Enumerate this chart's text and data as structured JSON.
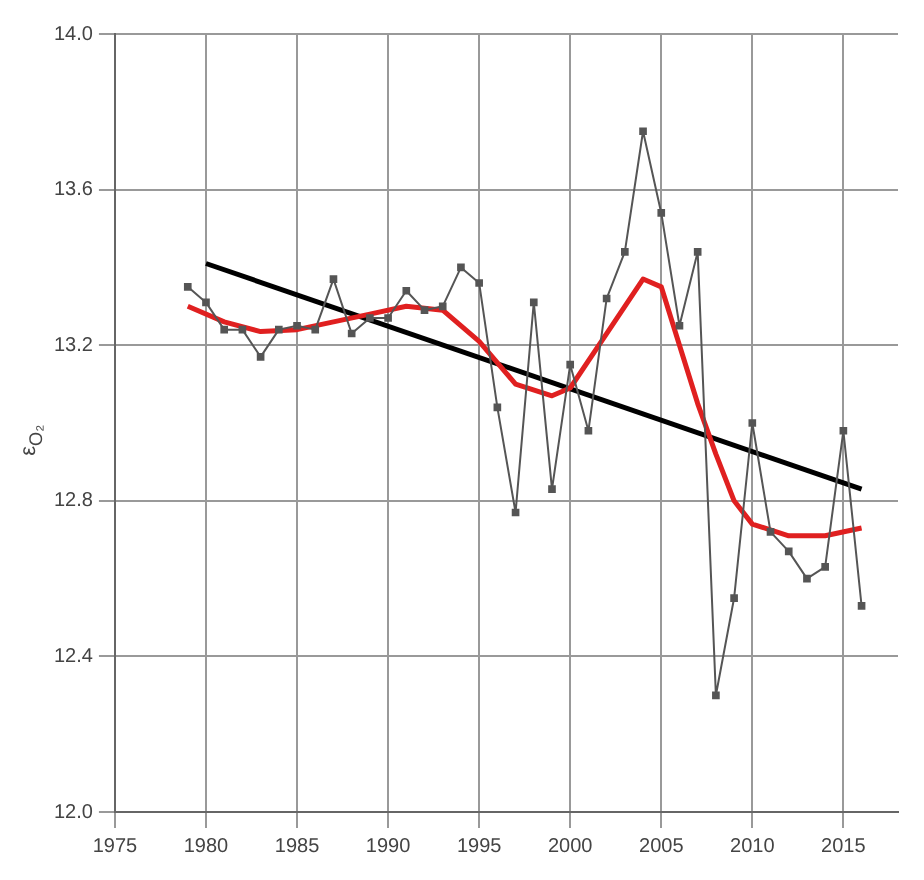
{
  "chart_data": {
    "type": "line",
    "ylabel": "ε$_{O₂}$",
    "xlim": [
      1975,
      2018
    ],
    "xticks": [
      1975,
      1980,
      1985,
      1990,
      1995,
      2000,
      2005,
      2010,
      2015
    ],
    "ylim": [
      12.0,
      14.0
    ],
    "yticks": [
      {
        "value": 12.0,
        "label": "12.0"
      },
      {
        "value": 12.4,
        "label": "12.4"
      },
      {
        "value": 12.8,
        "label": "12.8"
      },
      {
        "value": 13.2,
        "label": "13.2"
      },
      {
        "value": 13.6,
        "label": "13.6"
      },
      {
        "value": 14.0,
        "label": "14.0"
      }
    ],
    "grid": true,
    "legend": false,
    "series": [
      {
        "color": "#555555",
        "marker": "square",
        "x": [
          1979,
          1980,
          1981,
          1982,
          1983,
          1984,
          1985,
          1986,
          1987,
          1988,
          1989,
          1990,
          1991,
          1992,
          1993,
          1994,
          1995,
          1996,
          1997,
          1998,
          1999,
          2000,
          2001,
          2002,
          2003,
          2004,
          2005,
          2006,
          2007,
          2008,
          2009,
          2010,
          2011,
          2012,
          2013,
          2014,
          2015,
          2016
        ],
        "values": [
          13.35,
          13.31,
          13.24,
          13.24,
          13.17,
          13.24,
          13.25,
          13.24,
          13.37,
          13.23,
          13.27,
          13.27,
          13.34,
          13.29,
          13.3,
          13.4,
          13.36,
          13.04,
          12.77,
          13.31,
          12.83,
          13.15,
          12.98,
          13.32,
          13.44,
          13.75,
          13.54,
          13.25,
          13.44,
          12.3,
          12.55,
          13.0,
          12.72,
          12.67,
          12.6,
          12.63,
          12.98,
          12.53
        ]
      },
      {
        "color": "#e02020",
        "marker": "none",
        "x": [
          1979,
          1981,
          1983,
          1985,
          1987,
          1989,
          1991,
          1993,
          1995,
          1997,
          1999,
          2000,
          2002,
          2004,
          2005,
          2006,
          2007,
          2008,
          2009,
          2010,
          2012,
          2014,
          2016
        ],
        "values": [
          13.3,
          13.26,
          13.235,
          13.24,
          13.26,
          13.28,
          13.3,
          13.29,
          13.21,
          13.1,
          13.07,
          13.09,
          13.23,
          13.37,
          13.35,
          13.2,
          13.05,
          12.92,
          12.8,
          12.74,
          12.71,
          12.71,
          12.73
        ]
      },
      {
        "color": "#000000",
        "marker": "none",
        "x": [
          1980,
          2016
        ],
        "values": [
          13.41,
          12.83
        ]
      }
    ]
  }
}
